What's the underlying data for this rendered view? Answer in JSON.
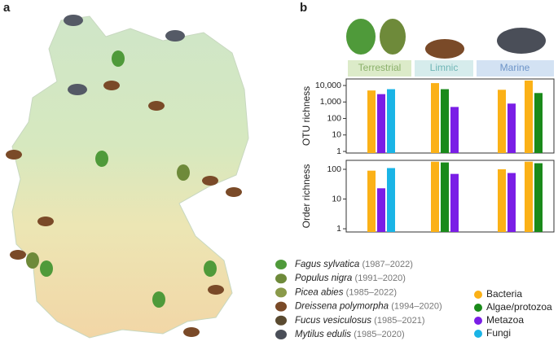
{
  "panel_labels": [
    "a",
    "b"
  ],
  "groups": [
    "Terrestrial",
    "Limnic",
    "Marine"
  ],
  "species": [
    {
      "name": "Fagus sylvatica",
      "years": "(1987–2022)"
    },
    {
      "name": "Populus nigra",
      "years": "(1991–2020)"
    },
    {
      "name": "Picea abies",
      "years": "(1985–2022)"
    },
    {
      "name": "Dreissena polymorpha",
      "years": "(1994–2020)"
    },
    {
      "name": "Fucus vesiculosus",
      "years": "(1985–2021)"
    },
    {
      "name": "Mytilus edulis",
      "years": "(1985–2020)"
    }
  ],
  "chart_data": [
    {
      "type": "bar",
      "y_label": "OTU richness",
      "log_scale": true,
      "categories": [
        null,
        null,
        null,
        null
      ],
      "series": [
        {
          "name": "Bacteria",
          "color": "#fbb117",
          "values": [
            5000,
            14000,
            5500,
            20000
          ]
        },
        {
          "name": "Algae/protozoa",
          "color": "#1a8a1a",
          "values": [
            null,
            6000,
            null,
            3500
          ]
        },
        {
          "name": "Metazoa",
          "color": "#7a1ee6",
          "values": [
            3000,
            500,
            800,
            null
          ]
        },
        {
          "name": "Fungi",
          "color": "#1ab4e6",
          "values": [
            6000,
            null,
            null,
            null
          ]
        }
      ],
      "ylim": [
        0.8,
        25000
      ],
      "yticks": [
        1,
        10,
        100,
        {
          "value": 1000,
          "label": "1,000"
        },
        {
          "value": 10000,
          "label": "10,000"
        }
      ]
    },
    {
      "type": "bar",
      "y_label": "Order richness",
      "log_scale": true,
      "categories": [
        null,
        null,
        null,
        null
      ],
      "series": [
        {
          "color": "#fbb117",
          "values": [
            90,
            180,
            100,
            180
          ]
        },
        {
          "color": "#1a8a1a",
          "values": [
            null,
            170,
            null,
            160
          ]
        },
        {
          "color": "#7a1ee6",
          "values": [
            23,
            70,
            75,
            null
          ]
        },
        {
          "color": "#1ab4e6",
          "values": [
            110,
            null,
            null,
            null
          ]
        }
      ],
      "ylim": [
        0.78,
        200
      ],
      "yticks": [
        1,
        10,
        100
      ]
    }
  ]
}
